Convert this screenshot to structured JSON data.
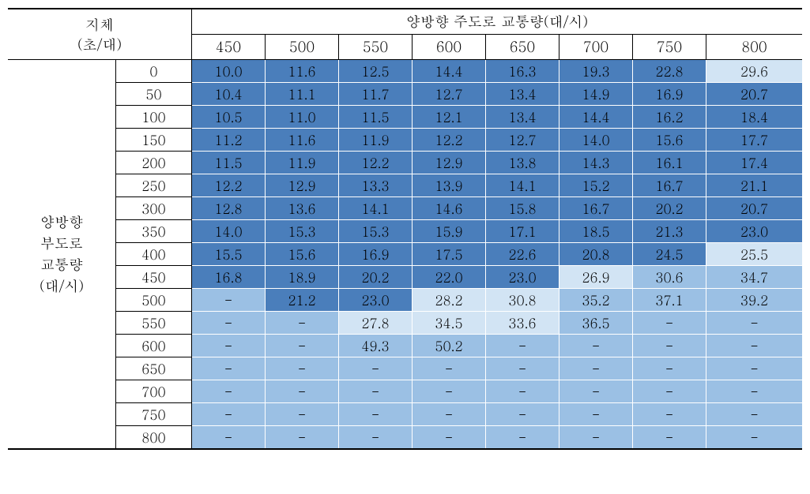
{
  "header": {
    "corner_line1": "지체",
    "corner_line2": "(초/대)",
    "top": "양방향 주도로 교통량(대/시)",
    "cols": [
      "450",
      "500",
      "550",
      "600",
      "650",
      "700",
      "750",
      "800"
    ]
  },
  "side": {
    "label_line1": "양방향",
    "label_line2": "부도로",
    "label_line3": "교통량",
    "label_line4": "(대/시)",
    "rows": [
      "0",
      "50",
      "100",
      "150",
      "200",
      "250",
      "300",
      "350",
      "400",
      "450",
      "500",
      "550",
      "600",
      "650",
      "700",
      "750",
      "800"
    ]
  },
  "colors": {
    "dark": "#4a7ebb",
    "light": "#d2e4f4",
    "med": "#9bc0e4",
    "vlight": "#e6f0fa"
  },
  "grid": [
    [
      {
        "v": "10.0",
        "c": "dark"
      },
      {
        "v": "11.6",
        "c": "dark"
      },
      {
        "v": "12.5",
        "c": "dark"
      },
      {
        "v": "14.4",
        "c": "dark"
      },
      {
        "v": "16.3",
        "c": "dark"
      },
      {
        "v": "19.3",
        "c": "dark"
      },
      {
        "v": "22.8",
        "c": "dark"
      },
      {
        "v": "29.6",
        "c": "light"
      }
    ],
    [
      {
        "v": "10.4",
        "c": "dark"
      },
      {
        "v": "11.1",
        "c": "dark"
      },
      {
        "v": "11.7",
        "c": "dark"
      },
      {
        "v": "12.7",
        "c": "dark"
      },
      {
        "v": "13.4",
        "c": "dark"
      },
      {
        "v": "14.9",
        "c": "dark"
      },
      {
        "v": "16.9",
        "c": "dark"
      },
      {
        "v": "20.7",
        "c": "dark"
      }
    ],
    [
      {
        "v": "10.5",
        "c": "dark"
      },
      {
        "v": "11.0",
        "c": "dark"
      },
      {
        "v": "11.5",
        "c": "dark"
      },
      {
        "v": "12.1",
        "c": "dark"
      },
      {
        "v": "13.4",
        "c": "dark"
      },
      {
        "v": "14.4",
        "c": "dark"
      },
      {
        "v": "16.2",
        "c": "dark"
      },
      {
        "v": "18.4",
        "c": "dark"
      }
    ],
    [
      {
        "v": "11.2",
        "c": "dark"
      },
      {
        "v": "11.6",
        "c": "dark"
      },
      {
        "v": "11.9",
        "c": "dark"
      },
      {
        "v": "12.2",
        "c": "dark"
      },
      {
        "v": "12.7",
        "c": "dark"
      },
      {
        "v": "14.0",
        "c": "dark"
      },
      {
        "v": "15.6",
        "c": "dark"
      },
      {
        "v": "17.7",
        "c": "dark"
      }
    ],
    [
      {
        "v": "11.5",
        "c": "dark"
      },
      {
        "v": "11.9",
        "c": "dark"
      },
      {
        "v": "12.2",
        "c": "dark"
      },
      {
        "v": "12.9",
        "c": "dark"
      },
      {
        "v": "13.8",
        "c": "dark"
      },
      {
        "v": "14.3",
        "c": "dark"
      },
      {
        "v": "16.1",
        "c": "dark"
      },
      {
        "v": "17.4",
        "c": "dark"
      }
    ],
    [
      {
        "v": "12.2",
        "c": "dark"
      },
      {
        "v": "12.9",
        "c": "dark"
      },
      {
        "v": "13.3",
        "c": "dark"
      },
      {
        "v": "13.9",
        "c": "dark"
      },
      {
        "v": "14.1",
        "c": "dark"
      },
      {
        "v": "15.2",
        "c": "dark"
      },
      {
        "v": "16.7",
        "c": "dark"
      },
      {
        "v": "21.1",
        "c": "dark"
      }
    ],
    [
      {
        "v": "12.8",
        "c": "dark"
      },
      {
        "v": "13.6",
        "c": "dark"
      },
      {
        "v": "14.1",
        "c": "dark"
      },
      {
        "v": "14.6",
        "c": "dark"
      },
      {
        "v": "15.8",
        "c": "dark"
      },
      {
        "v": "16.7",
        "c": "dark"
      },
      {
        "v": "20.2",
        "c": "dark"
      },
      {
        "v": "20.7",
        "c": "dark"
      }
    ],
    [
      {
        "v": "14.0",
        "c": "dark"
      },
      {
        "v": "15.3",
        "c": "dark"
      },
      {
        "v": "15.3",
        "c": "dark"
      },
      {
        "v": "15.9",
        "c": "dark"
      },
      {
        "v": "17.1",
        "c": "dark"
      },
      {
        "v": "18.5",
        "c": "dark"
      },
      {
        "v": "21.3",
        "c": "dark"
      },
      {
        "v": "23.0",
        "c": "dark"
      }
    ],
    [
      {
        "v": "15.5",
        "c": "dark"
      },
      {
        "v": "15.6",
        "c": "dark"
      },
      {
        "v": "16.9",
        "c": "dark"
      },
      {
        "v": "17.5",
        "c": "dark"
      },
      {
        "v": "22.6",
        "c": "dark"
      },
      {
        "v": "20.8",
        "c": "dark"
      },
      {
        "v": "24.5",
        "c": "dark"
      },
      {
        "v": "25.5",
        "c": "light"
      }
    ],
    [
      {
        "v": "16.8",
        "c": "dark"
      },
      {
        "v": "18.9",
        "c": "dark"
      },
      {
        "v": "20.2",
        "c": "dark"
      },
      {
        "v": "22.0",
        "c": "dark"
      },
      {
        "v": "23.0",
        "c": "dark"
      },
      {
        "v": "26.9",
        "c": "light"
      },
      {
        "v": "30.6",
        "c": "med"
      },
      {
        "v": "34.7",
        "c": "med"
      }
    ],
    [
      {
        "v": "-",
        "c": "med"
      },
      {
        "v": "21.2",
        "c": "dark"
      },
      {
        "v": "23.0",
        "c": "dark"
      },
      {
        "v": "28.2",
        "c": "light"
      },
      {
        "v": "30.8",
        "c": "light"
      },
      {
        "v": "35.2",
        "c": "med"
      },
      {
        "v": "37.1",
        "c": "med"
      },
      {
        "v": "39.2",
        "c": "med"
      }
    ],
    [
      {
        "v": "-",
        "c": "med"
      },
      {
        "v": "-",
        "c": "med"
      },
      {
        "v": "27.8",
        "c": "light"
      },
      {
        "v": "34.5",
        "c": "light"
      },
      {
        "v": "33.6",
        "c": "light"
      },
      {
        "v": "36.5",
        "c": "med"
      },
      {
        "v": "-",
        "c": "med"
      },
      {
        "v": "-",
        "c": "med"
      }
    ],
    [
      {
        "v": "-",
        "c": "med"
      },
      {
        "v": "-",
        "c": "med"
      },
      {
        "v": "49.3",
        "c": "med"
      },
      {
        "v": "50.2",
        "c": "med"
      },
      {
        "v": "-",
        "c": "med"
      },
      {
        "v": "-",
        "c": "med"
      },
      {
        "v": "-",
        "c": "med"
      },
      {
        "v": "-",
        "c": "med"
      }
    ],
    [
      {
        "v": "-",
        "c": "med"
      },
      {
        "v": "-",
        "c": "med"
      },
      {
        "v": "-",
        "c": "med"
      },
      {
        "v": "-",
        "c": "med"
      },
      {
        "v": "-",
        "c": "med"
      },
      {
        "v": "-",
        "c": "med"
      },
      {
        "v": "-",
        "c": "med"
      },
      {
        "v": "-",
        "c": "med"
      }
    ],
    [
      {
        "v": "-",
        "c": "med"
      },
      {
        "v": "-",
        "c": "med"
      },
      {
        "v": "-",
        "c": "med"
      },
      {
        "v": "-",
        "c": "med"
      },
      {
        "v": "-",
        "c": "med"
      },
      {
        "v": "-",
        "c": "med"
      },
      {
        "v": "-",
        "c": "med"
      },
      {
        "v": "-",
        "c": "med"
      }
    ],
    [
      {
        "v": "-",
        "c": "med"
      },
      {
        "v": "-",
        "c": "med"
      },
      {
        "v": "-",
        "c": "med"
      },
      {
        "v": "-",
        "c": "med"
      },
      {
        "v": "-",
        "c": "med"
      },
      {
        "v": "-",
        "c": "med"
      },
      {
        "v": "-",
        "c": "med"
      },
      {
        "v": "-",
        "c": "med"
      }
    ],
    [
      {
        "v": "-",
        "c": "med"
      },
      {
        "v": "-",
        "c": "med"
      },
      {
        "v": "-",
        "c": "med"
      },
      {
        "v": "-",
        "c": "med"
      },
      {
        "v": "-",
        "c": "med"
      },
      {
        "v": "-",
        "c": "med"
      },
      {
        "v": "-",
        "c": "med"
      },
      {
        "v": "-",
        "c": "med"
      }
    ]
  ]
}
